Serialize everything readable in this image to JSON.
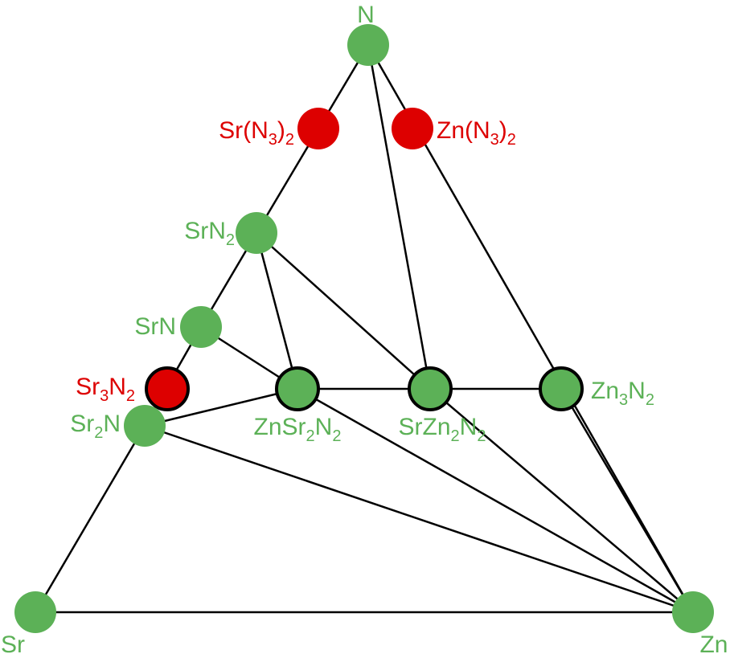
{
  "colors": {
    "stable": "#5cb157",
    "unstable": "#dd0000",
    "edge": "#000000",
    "outline": "#000000"
  },
  "diagram": {
    "vertices": {
      "N": {
        "label": "N"
      },
      "Sr": {
        "label": "Sr"
      },
      "Zn": {
        "label": "Zn"
      }
    },
    "phases": [
      {
        "id": "N",
        "status": "stable",
        "outlined": false,
        "label": [
          {
            "t": "N"
          }
        ]
      },
      {
        "id": "SrN3_2",
        "status": "unstable",
        "outlined": false,
        "label": [
          {
            "t": "Sr(N"
          },
          {
            "s": "3"
          },
          {
            "t": ")"
          },
          {
            "s": "2"
          }
        ]
      },
      {
        "id": "ZnN3_2",
        "status": "unstable",
        "outlined": false,
        "label": [
          {
            "t": "Zn(N"
          },
          {
            "s": "3"
          },
          {
            "t": ")"
          },
          {
            "s": "2"
          }
        ]
      },
      {
        "id": "SrN2",
        "status": "stable",
        "outlined": false,
        "label": [
          {
            "t": "SrN"
          },
          {
            "s": "2"
          }
        ]
      },
      {
        "id": "SrN",
        "status": "stable",
        "outlined": false,
        "label": [
          {
            "t": "SrN"
          }
        ]
      },
      {
        "id": "Sr3N2",
        "status": "unstable",
        "outlined": true,
        "label": [
          {
            "t": "Sr"
          },
          {
            "s": "3"
          },
          {
            "t": "N"
          },
          {
            "s": "2"
          }
        ]
      },
      {
        "id": "Sr2N",
        "status": "stable",
        "outlined": false,
        "label": [
          {
            "t": "Sr"
          },
          {
            "s": "2"
          },
          {
            "t": "N"
          }
        ]
      },
      {
        "id": "ZnSr2N2",
        "status": "stable",
        "outlined": true,
        "label": [
          {
            "t": "ZnSr"
          },
          {
            "s": "2"
          },
          {
            "t": "N"
          },
          {
            "s": "2"
          }
        ]
      },
      {
        "id": "SrZn2N2",
        "status": "stable",
        "outlined": true,
        "label": [
          {
            "t": "SrZn"
          },
          {
            "s": "2"
          },
          {
            "t": "N"
          },
          {
            "s": "2"
          }
        ]
      },
      {
        "id": "Zn3N2",
        "status": "stable",
        "outlined": true,
        "label": [
          {
            "t": "Zn"
          },
          {
            "s": "3"
          },
          {
            "t": "N"
          },
          {
            "s": "2"
          }
        ]
      },
      {
        "id": "Sr",
        "status": "stable",
        "outlined": false,
        "label": [
          {
            "t": "Sr"
          }
        ]
      },
      {
        "id": "Zn",
        "status": "stable",
        "outlined": false,
        "label": [
          {
            "t": "Zn"
          }
        ]
      }
    ],
    "tie_lines": [
      [
        "N",
        "SrN2"
      ],
      [
        "SrN2",
        "SrN"
      ],
      [
        "SrN",
        "Sr2N"
      ],
      [
        "Sr2N",
        "Sr"
      ],
      [
        "Sr",
        "Zn"
      ],
      [
        "N",
        "Zn"
      ],
      [
        "N",
        "SrZn2N2"
      ],
      [
        "SrN2",
        "ZnSr2N2"
      ],
      [
        "SrN2",
        "SrZn2N2"
      ],
      [
        "SrN",
        "ZnSr2N2"
      ],
      [
        "Sr2N",
        "ZnSr2N2"
      ],
      [
        "ZnSr2N2",
        "SrZn2N2"
      ],
      [
        "SrZn2N2",
        "Zn3N2"
      ],
      [
        "Sr2N",
        "Zn"
      ],
      [
        "ZnSr2N2",
        "Zn"
      ],
      [
        "SrZn2N2",
        "Zn"
      ],
      [
        "Zn3N2",
        "Zn"
      ]
    ]
  }
}
